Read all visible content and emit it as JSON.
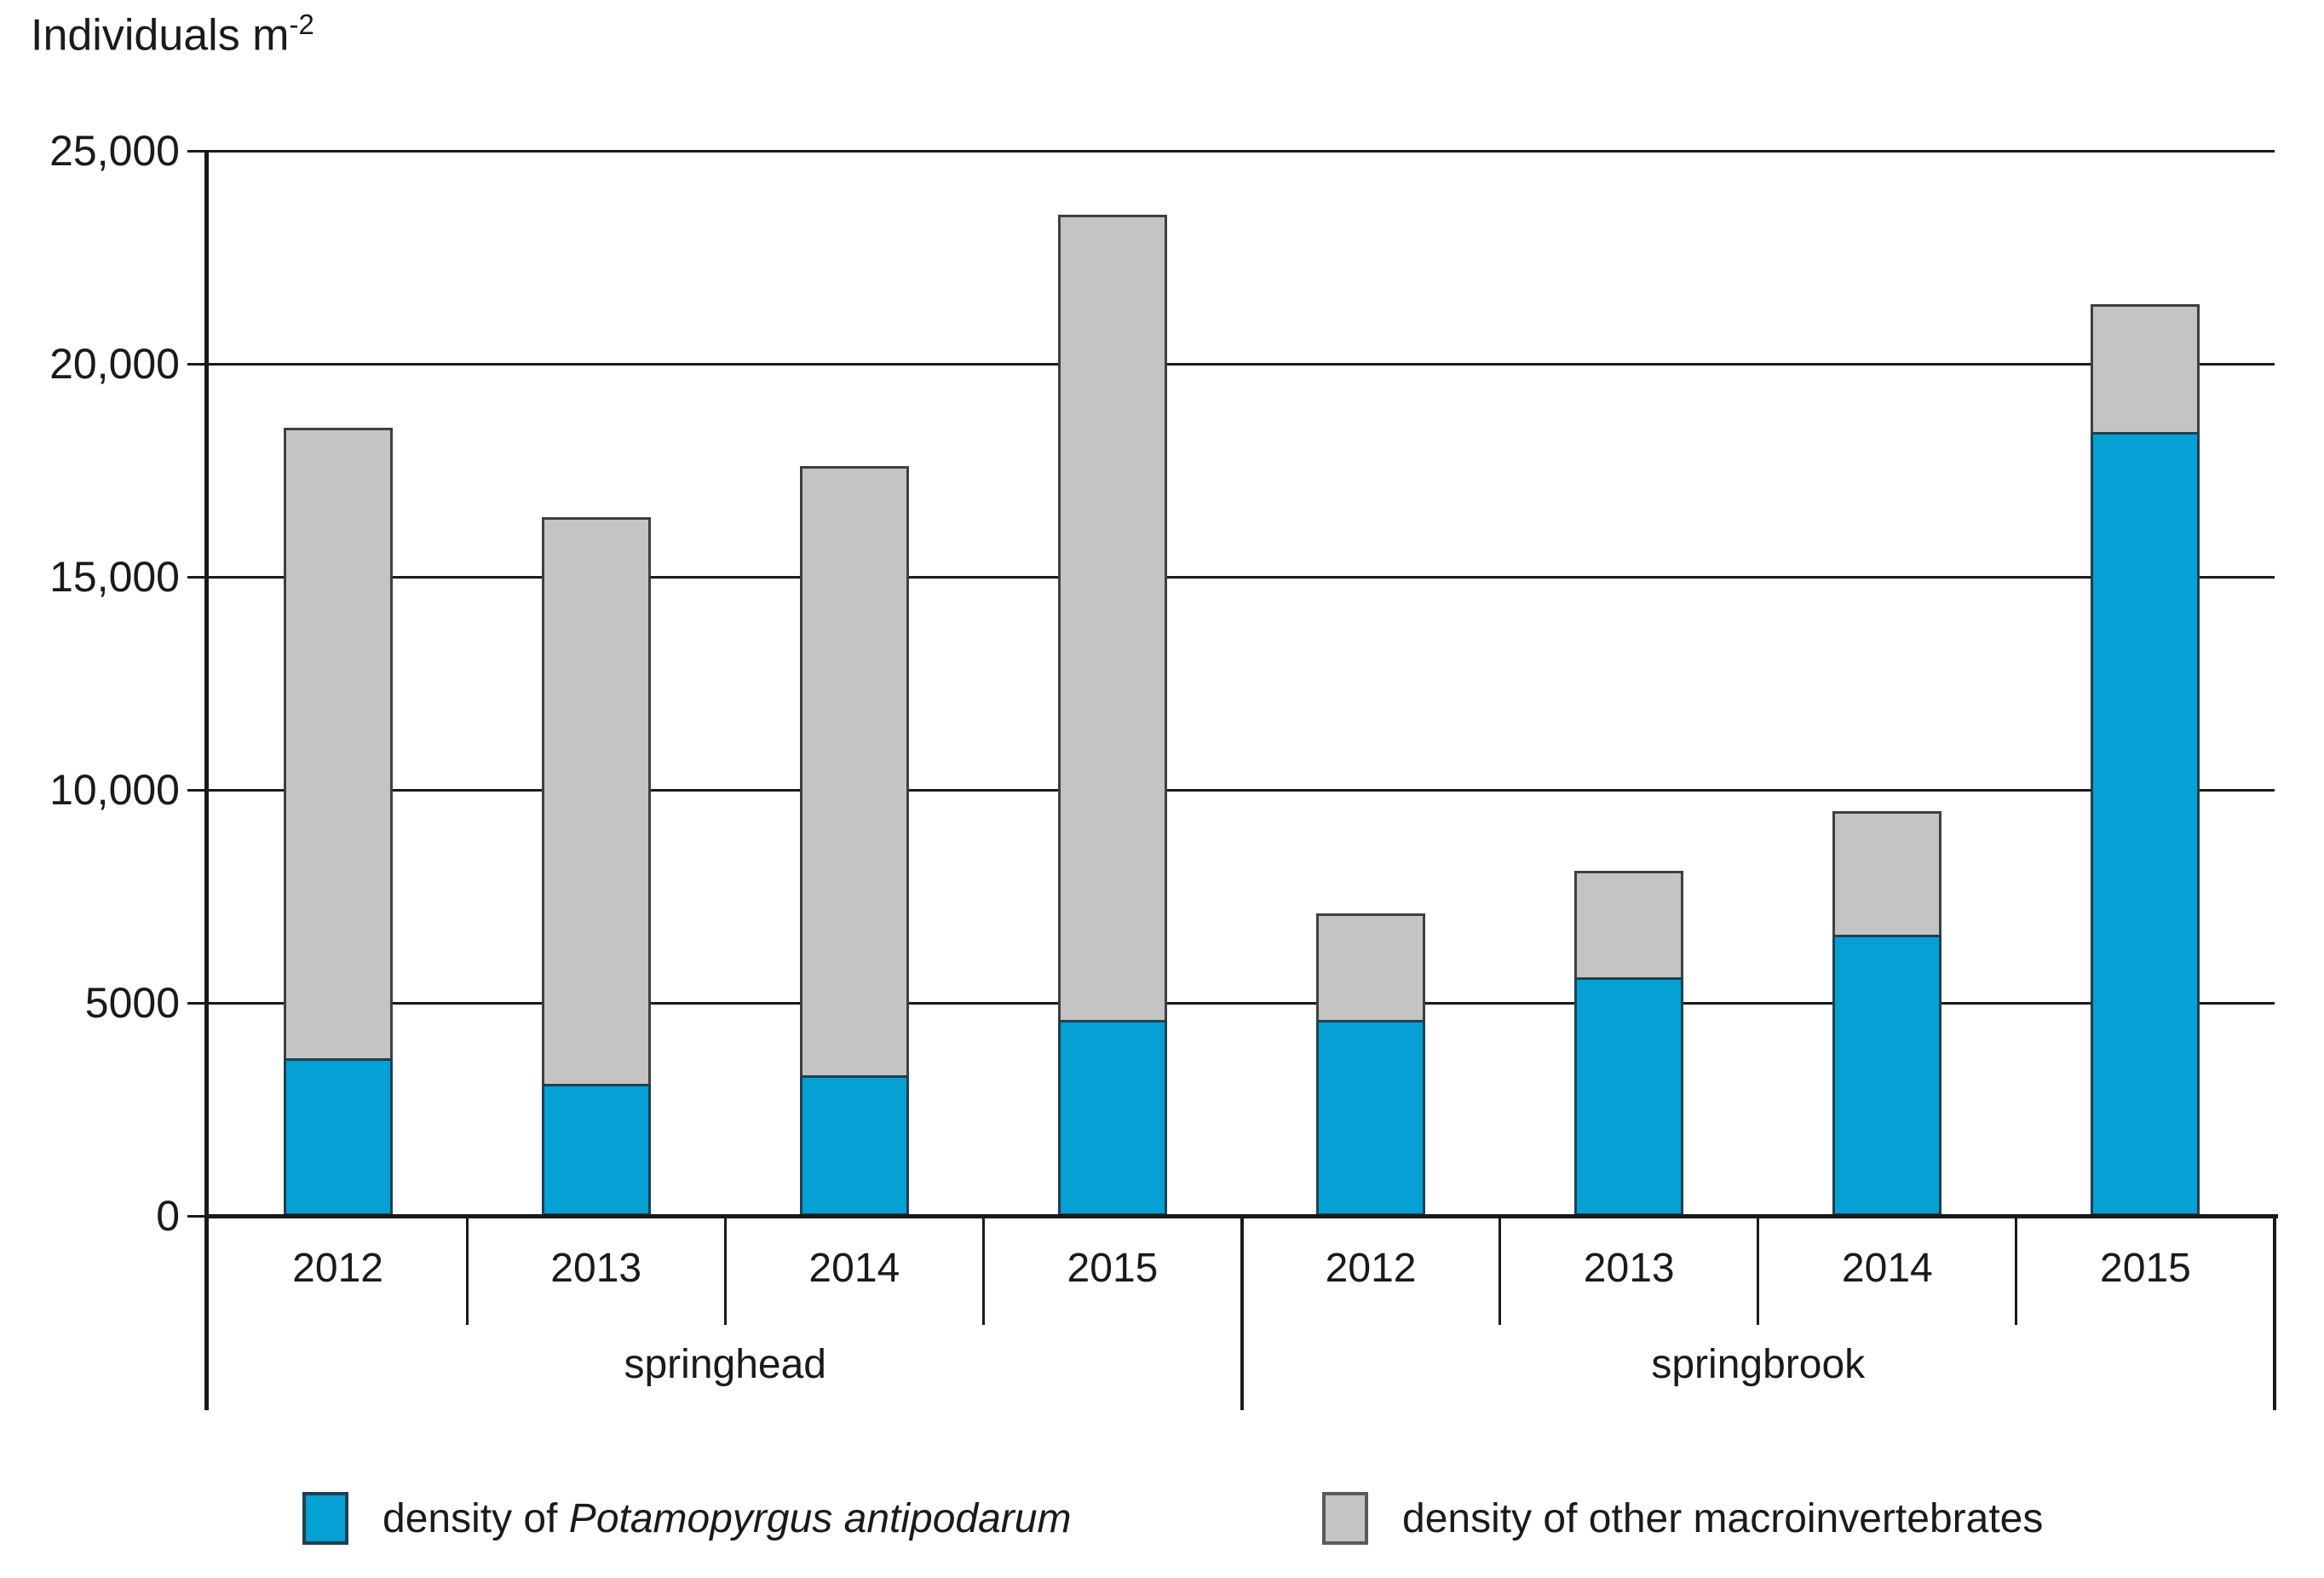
{
  "title": {
    "text": "Individuals m",
    "superscript": "-2"
  },
  "colors": {
    "pa_fill": "#05A0D4",
    "pa_border": "#20404E",
    "other_fill": "#C4C4C4",
    "other_border": "#3F3F3F",
    "axis": "#1A1A1A"
  },
  "chart_data": {
    "type": "bar",
    "stacked": true,
    "title": "Individuals m-2",
    "ylabel": "Individuals m-2",
    "xlabel": "",
    "grid": true,
    "legend_position": "bottom",
    "ylim": [
      0,
      25000
    ],
    "y_ticks": [
      {
        "value": 25000,
        "label": "25,000"
      },
      {
        "value": 20000,
        "label": "20,000"
      },
      {
        "value": 15000,
        "label": "15,000"
      },
      {
        "value": 10000,
        "label": "10,000"
      },
      {
        "value": 5000,
        "label": "5000"
      },
      {
        "value": 0,
        "label": "0"
      }
    ],
    "groups": [
      {
        "label": "springhead",
        "categories": [
          "2012",
          "2013",
          "2014",
          "2015"
        ],
        "series": [
          {
            "name": "density of Potamopyrgus antipodarum",
            "values": [
              3700,
              3100,
              3300,
              4600
            ]
          },
          {
            "name": "density of other macroinvertebrates",
            "values": [
              14800,
              13300,
              14300,
              18900
            ]
          }
        ],
        "totals": [
          18500,
          16400,
          17600,
          23500
        ]
      },
      {
        "label": "springbrook",
        "categories": [
          "2012",
          "2013",
          "2014",
          "2015"
        ],
        "series": [
          {
            "name": "density of Potamopyrgus antipodarum",
            "values": [
              4600,
              5600,
              6600,
              18400
            ]
          },
          {
            "name": "density of other macroinvertebrates",
            "values": [
              2500,
              2500,
              2900,
              3000
            ]
          }
        ],
        "totals": [
          7100,
          8100,
          9500,
          21400
        ]
      }
    ]
  },
  "legend": {
    "items": [
      {
        "prefix": "density of ",
        "species": "Potamopyrgus antipodarum"
      },
      {
        "label": "density of other macroinvertebrates"
      }
    ]
  }
}
